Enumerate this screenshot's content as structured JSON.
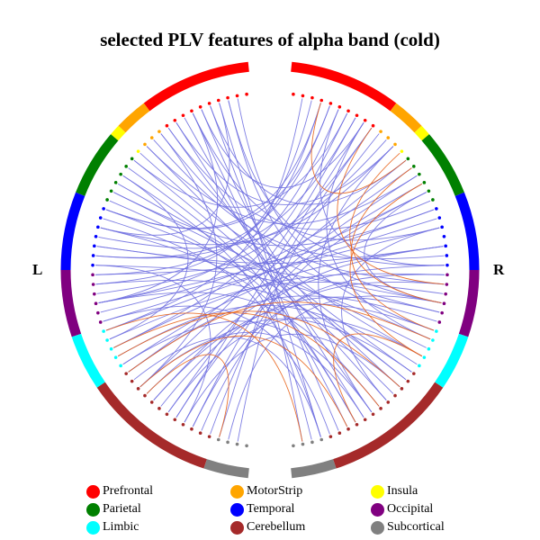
{
  "title": "selected PLV features of alpha band (cold)",
  "side_labels": {
    "left": "L",
    "right": "R"
  },
  "colors": {
    "positive_link": "#e8631a",
    "negative_link": "#7070e0"
  },
  "regions": [
    {
      "name": "Prefrontal",
      "color": "#ff0000",
      "left_nodes": 10,
      "right_nodes": 10
    },
    {
      "name": "MotorStrip",
      "color": "#ffa500",
      "left_nodes": 3,
      "right_nodes": 3
    },
    {
      "name": "Insula",
      "color": "#ffff00",
      "left_nodes": 1,
      "right_nodes": 1
    },
    {
      "name": "Parietal",
      "color": "#008000",
      "left_nodes": 6,
      "right_nodes": 6
    },
    {
      "name": "Temporal",
      "color": "#0000ff",
      "left_nodes": 7,
      "right_nodes": 7
    },
    {
      "name": "Occipital",
      "color": "#800080",
      "left_nodes": 6,
      "right_nodes": 6
    },
    {
      "name": "Limbic",
      "color": "#00ffff",
      "left_nodes": 5,
      "right_nodes": 5
    },
    {
      "name": "Cerebellum",
      "color": "#a52a2a",
      "left_nodes": 12,
      "right_nodes": 12
    },
    {
      "name": "Subcortical",
      "color": "#808080",
      "left_nodes": 4,
      "right_nodes": 4
    }
  ],
  "legend_order": [
    "Prefrontal",
    "MotorStrip",
    "Insula",
    "Parietal",
    "Temporal",
    "Occipital",
    "Limbic",
    "Cerebellum",
    "Subcortical"
  ],
  "links": {
    "negative": [
      [
        "L",
        3,
        "R",
        50
      ],
      [
        "L",
        4,
        "R",
        45
      ],
      [
        "L",
        5,
        "R",
        40
      ],
      [
        "L",
        6,
        "R",
        52
      ],
      [
        "L",
        7,
        "R",
        48
      ],
      [
        "L",
        8,
        "R",
        44
      ],
      [
        "L",
        9,
        "R",
        36
      ],
      [
        "L",
        2,
        "R",
        33
      ],
      [
        "L",
        1,
        "R",
        30
      ],
      [
        "L",
        10,
        "R",
        28
      ],
      [
        "L",
        12,
        "R",
        38
      ],
      [
        "L",
        14,
        "R",
        42
      ],
      [
        "L",
        15,
        "R",
        47
      ],
      [
        "L",
        16,
        "R",
        51
      ],
      [
        "L",
        18,
        "R",
        35
      ],
      [
        "L",
        20,
        "R",
        41
      ],
      [
        "L",
        22,
        "R",
        46
      ],
      [
        "L",
        24,
        "R",
        30
      ],
      [
        "L",
        26,
        "R",
        34
      ],
      [
        "L",
        28,
        "R",
        39
      ],
      [
        "L",
        30,
        "R",
        43
      ],
      [
        "L",
        32,
        "R",
        49
      ],
      [
        "L",
        34,
        "R",
        29
      ],
      [
        "L",
        36,
        "R",
        37
      ],
      [
        "L",
        38,
        "R",
        32
      ],
      [
        "L",
        40,
        "R",
        45
      ],
      [
        "L",
        42,
        "R",
        33
      ],
      [
        "L",
        44,
        "R",
        36
      ],
      [
        "L",
        46,
        "R",
        40
      ],
      [
        "L",
        48,
        "R",
        27
      ],
      [
        "R",
        3,
        "L",
        20
      ],
      [
        "R",
        4,
        "L",
        25
      ],
      [
        "R",
        5,
        "L",
        30
      ],
      [
        "R",
        6,
        "L",
        35
      ],
      [
        "R",
        7,
        "L",
        40
      ],
      [
        "R",
        8,
        "L",
        45
      ],
      [
        "R",
        9,
        "L",
        50
      ],
      [
        "R",
        10,
        "L",
        52
      ],
      [
        "R",
        2,
        "L",
        28
      ],
      [
        "R",
        1,
        "L",
        33
      ],
      [
        "R",
        12,
        "L",
        22
      ],
      [
        "R",
        14,
        "L",
        38
      ],
      [
        "R",
        16,
        "L",
        44
      ],
      [
        "R",
        18,
        "L",
        49
      ],
      [
        "R",
        20,
        "L",
        27
      ],
      [
        "R",
        22,
        "L",
        32
      ],
      [
        "R",
        24,
        "L",
        37
      ],
      [
        "R",
        26,
        "L",
        42
      ],
      [
        "R",
        28,
        "L",
        47
      ],
      [
        "R",
        30,
        "L",
        51
      ],
      [
        "L",
        5,
        "R",
        8
      ],
      [
        "L",
        8,
        "R",
        12
      ],
      [
        "L",
        12,
        "R",
        16
      ],
      [
        "L",
        18,
        "R",
        20
      ],
      [
        "L",
        24,
        "R",
        24
      ],
      [
        "L",
        30,
        "R",
        18
      ],
      [
        "L",
        6,
        "R",
        22
      ],
      [
        "L",
        2,
        "R",
        26
      ],
      [
        "L",
        14,
        "R",
        6
      ],
      [
        "L",
        20,
        "R",
        4
      ],
      [
        "L",
        3,
        "L",
        22
      ],
      [
        "L",
        6,
        "L",
        30
      ],
      [
        "L",
        10,
        "L",
        40
      ],
      [
        "R",
        5,
        "R",
        26
      ],
      [
        "R",
        8,
        "R",
        34
      ],
      [
        "R",
        12,
        "R",
        44
      ],
      [
        "L",
        16,
        "L",
        34
      ],
      [
        "R",
        18,
        "R",
        30
      ],
      [
        "L",
        26,
        "L",
        46
      ],
      [
        "R",
        22,
        "R",
        42
      ],
      [
        "L",
        4,
        "R",
        14
      ],
      [
        "L",
        9,
        "R",
        19
      ],
      [
        "L",
        11,
        "R",
        25
      ],
      [
        "L",
        13,
        "R",
        31
      ],
      [
        "L",
        17,
        "R",
        39
      ],
      [
        "L",
        19,
        "R",
        46
      ],
      [
        "L",
        21,
        "R",
        50
      ],
      [
        "L",
        23,
        "R",
        11
      ],
      [
        "L",
        25,
        "R",
        7
      ],
      [
        "L",
        27,
        "R",
        3
      ],
      [
        "L",
        29,
        "R",
        9
      ],
      [
        "L",
        31,
        "R",
        15
      ],
      [
        "L",
        33,
        "R",
        21
      ],
      [
        "L",
        35,
        "R",
        27
      ],
      [
        "L",
        37,
        "R",
        44
      ],
      [
        "L",
        39,
        "R",
        50
      ],
      [
        "L",
        41,
        "R",
        38
      ],
      [
        "L",
        43,
        "R",
        31
      ],
      [
        "L",
        45,
        "R",
        24
      ],
      [
        "L",
        47,
        "R",
        17
      ]
    ],
    "positive": [
      [
        "R",
        9,
        "R",
        28
      ],
      [
        "R",
        13,
        "R",
        30
      ],
      [
        "R",
        15,
        "R",
        33
      ],
      [
        "R",
        17,
        "R",
        36
      ],
      [
        "R",
        36,
        "R",
        46
      ],
      [
        "R",
        40,
        "L",
        36
      ],
      [
        "L",
        35,
        "R",
        43
      ],
      [
        "L",
        41,
        "L",
        50
      ],
      [
        "L",
        38,
        "R",
        34
      ],
      [
        "R",
        3,
        "R",
        14
      ],
      [
        "R",
        52,
        "L",
        33
      ],
      [
        "R",
        47,
        "L",
        40
      ]
    ]
  }
}
